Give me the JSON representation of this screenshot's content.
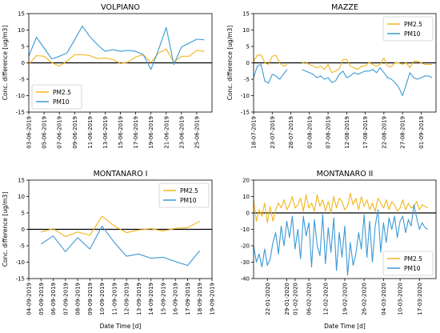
{
  "colors": {
    "PM2.5": "#f2b51c",
    "PM10": "#3c9ad6",
    "zero": "#000000"
  },
  "chart_data": [
    {
      "type": "line",
      "title": "VOLPIANO",
      "xlabel": "",
      "ylabel": "Conc. difference [ug/m3]",
      "ylim": [
        -15,
        15
      ],
      "yticks": [
        -15,
        -10,
        -5,
        0,
        5,
        10,
        15
      ],
      "xlim": [
        "2019-06-03",
        "2019-06-27"
      ],
      "xticks": [
        "03-06-2019",
        "05-06-2019",
        "07-06-2019",
        "09-06-2019",
        "11-06-2019",
        "13-06-2019",
        "15-06-2019",
        "17-06-2019",
        "19-06-2019",
        "21-06-2019",
        "23-06-2019",
        "25-06-2019"
      ],
      "legend": [
        "PM2.5",
        "PM10"
      ],
      "legend_position": "bottom-left",
      "series": [
        {
          "name": "PM2.5",
          "x": [
            "2019-06-03",
            "2019-06-04",
            "2019-06-05",
            "2019-06-06",
            "2019-06-07",
            "2019-06-08",
            "2019-06-09",
            "2019-06-10",
            "2019-06-11",
            "2019-06-12",
            "2019-06-13",
            "2019-06-14",
            "2019-06-15",
            "2019-06-16",
            "2019-06-17",
            "2019-06-18",
            "2019-06-19",
            "2019-06-20",
            "2019-06-21",
            "2019-06-22",
            "2019-06-23",
            "2019-06-24",
            "2019-06-25",
            "2019-06-26"
          ],
          "values": [
            -0.5,
            2.2,
            2.0,
            0.1,
            -1.0,
            0.5,
            2.5,
            2.5,
            2.2,
            1.3,
            1.5,
            1.0,
            -0.2,
            0.2,
            1.8,
            2.5,
            0.1,
            3.0,
            4.2,
            0.2,
            2.0,
            2.0,
            3.8,
            3.5
          ]
        },
        {
          "name": "PM10",
          "x": [
            "2019-06-03",
            "2019-06-04",
            "2019-06-05",
            "2019-06-06",
            "2019-06-07",
            "2019-06-08",
            "2019-06-09",
            "2019-06-10",
            "2019-06-11",
            "2019-06-12",
            "2019-06-13",
            "2019-06-14",
            "2019-06-15",
            "2019-06-16",
            "2019-06-17",
            "2019-06-18",
            "2019-06-19",
            "2019-06-20",
            "2019-06-21",
            "2019-06-22",
            "2019-06-23",
            "2019-06-24",
            "2019-06-25",
            "2019-06-26"
          ],
          "values": [
            2.0,
            7.8,
            4.5,
            1.2,
            2.0,
            3.0,
            7.0,
            11.2,
            8.0,
            5.5,
            3.5,
            4.0,
            3.5,
            3.8,
            3.5,
            2.5,
            -2.0,
            4.0,
            10.8,
            -0.5,
            4.8,
            6.0,
            7.2,
            7.0
          ]
        }
      ]
    },
    {
      "type": "line",
      "title": "MAZZE",
      "xlabel": "",
      "ylabel": "Conc. difference [ug/m3]",
      "ylim": [
        -15,
        15
      ],
      "yticks": [
        -15,
        -10,
        -5,
        0,
        5,
        10,
        15
      ],
      "xlim": [
        "2019-07-18",
        "2019-09-05"
      ],
      "xticks": [
        "18-07-2019",
        "23-07-2019",
        "28-07-2019",
        "02-08-2019",
        "07-08-2019",
        "12-08-2019",
        "17-08-2019",
        "22-08-2019",
        "27-08-2019",
        "01-09-2019"
      ],
      "legend": [
        "PM2.5",
        "PM10"
      ],
      "legend_position": "top-right",
      "series": [
        {
          "name": "PM2.5",
          "segments": [
            {
              "x": [
                "2019-07-18",
                "2019-07-19",
                "2019-07-20",
                "2019-07-21",
                "2019-07-22",
                "2019-07-23",
                "2019-07-24",
                "2019-07-25",
                "2019-07-26",
                "2019-07-27"
              ],
              "values": [
                0.5,
                2.3,
                2.5,
                0.0,
                -0.5,
                2.0,
                2.3,
                0.0,
                -1.0,
                -0.5
              ]
            },
            {
              "x": [
                "2019-07-31",
                "2019-08-01",
                "2019-08-02",
                "2019-08-03",
                "2019-08-04",
                "2019-08-05",
                "2019-08-06",
                "2019-08-07",
                "2019-08-08",
                "2019-08-09",
                "2019-08-10",
                "2019-08-11",
                "2019-08-12",
                "2019-08-13",
                "2019-08-14",
                "2019-08-15",
                "2019-08-16",
                "2019-08-17",
                "2019-08-18",
                "2019-08-19",
                "2019-08-20",
                "2019-08-21",
                "2019-08-22",
                "2019-08-23",
                "2019-08-24",
                "2019-08-25",
                "2019-08-26",
                "2019-08-27",
                "2019-08-28",
                "2019-08-29",
                "2019-08-30",
                "2019-08-31",
                "2019-09-01",
                "2019-09-02",
                "2019-09-03",
                "2019-09-04"
              ],
              "values": [
                0.0,
                0.2,
                -0.5,
                -1.0,
                -1.5,
                -1.0,
                -2.0,
                -0.5,
                -3.0,
                -2.5,
                -1.8,
                1.0,
                1.0,
                -1.0,
                -1.5,
                -2.0,
                -1.0,
                -1.0,
                0.2,
                -0.5,
                -1.0,
                -0.5,
                1.5,
                -1.0,
                -1.2,
                0.0,
                0.0,
                -0.5,
                0.0,
                -1.5,
                0.5,
                0.5,
                0.0,
                -0.5,
                -0.5,
                -0.5
              ]
            }
          ]
        },
        {
          "name": "PM10",
          "segments": [
            {
              "x": [
                "2019-07-18",
                "2019-07-19",
                "2019-07-20",
                "2019-07-21",
                "2019-07-22",
                "2019-07-23",
                "2019-07-24",
                "2019-07-25",
                "2019-07-26",
                "2019-07-27"
              ],
              "values": [
                -4.5,
                -1.0,
                -0.5,
                -5.5,
                -6.2,
                -3.5,
                -4.0,
                -5.0,
                -3.5,
                -2.0
              ]
            },
            {
              "x": [
                "2019-07-31",
                "2019-08-01",
                "2019-08-02",
                "2019-08-03",
                "2019-08-04",
                "2019-08-05",
                "2019-08-06",
                "2019-08-07",
                "2019-08-08",
                "2019-08-09",
                "2019-08-10",
                "2019-08-11",
                "2019-08-12",
                "2019-08-13",
                "2019-08-14",
                "2019-08-15",
                "2019-08-16",
                "2019-08-17",
                "2019-08-18",
                "2019-08-19",
                "2019-08-20",
                "2019-08-21",
                "2019-08-22",
                "2019-08-23",
                "2019-08-24",
                "2019-08-25",
                "2019-08-26",
                "2019-08-27",
                "2019-08-28",
                "2019-08-29",
                "2019-08-30",
                "2019-08-31",
                "2019-09-01",
                "2019-09-02",
                "2019-09-03",
                "2019-09-04"
              ],
              "values": [
                -2.0,
                -2.5,
                -3.0,
                -3.5,
                -4.5,
                -4.0,
                -5.0,
                -4.5,
                -6.0,
                -5.5,
                -3.5,
                -2.5,
                -4.5,
                -4.0,
                -3.0,
                -3.5,
                -3.0,
                -2.5,
                -2.5,
                -2.0,
                -3.0,
                -1.5,
                -3.0,
                -4.5,
                -5.0,
                -6.0,
                -7.5,
                -10.0,
                -6.5,
                -3.0,
                -4.5,
                -5.0,
                -4.5,
                -4.0,
                -4.0,
                -4.5
              ]
            }
          ]
        }
      ]
    },
    {
      "type": "line",
      "title": "MONTANARO I",
      "xlabel": "Date Time [d]",
      "ylabel": "Conc. difference [ug/m3]",
      "ylim": [
        -15,
        15
      ],
      "yticks": [
        -15,
        -10,
        -5,
        0,
        5,
        10,
        15
      ],
      "xlim": [
        "2019-09-04",
        "2019-09-19"
      ],
      "xticks": [
        "04-09-2019",
        "05-09-2019",
        "06-09-2019",
        "07-09-2019",
        "08-09-2019",
        "09-09-2019",
        "10-09-2019",
        "11-09-2019",
        "12-09-2019",
        "13-09-2019",
        "14-09-2019",
        "15-09-2019",
        "16-09-2019",
        "17-09-2019",
        "18-09-2019",
        "19-09-2019"
      ],
      "legend": [
        "PM2.5",
        "PM10"
      ],
      "legend_position": "top-right",
      "series": [
        {
          "name": "PM2.5",
          "x": [
            "2019-09-05",
            "2019-09-06",
            "2019-09-07",
            "2019-09-08",
            "2019-09-09",
            "2019-09-10",
            "2019-09-11",
            "2019-09-12",
            "2019-09-13",
            "2019-09-14",
            "2019-09-15",
            "2019-09-16",
            "2019-09-17",
            "2019-09-18"
          ],
          "values": [
            -0.8,
            0.2,
            -2.2,
            -0.8,
            -1.8,
            4.0,
            1.0,
            -1.0,
            -0.2,
            0.2,
            -0.5,
            0.3,
            0.5,
            2.5
          ]
        },
        {
          "name": "PM10",
          "x": [
            "2019-09-05",
            "2019-09-06",
            "2019-09-07",
            "2019-09-08",
            "2019-09-09",
            "2019-09-10",
            "2019-09-11",
            "2019-09-12",
            "2019-09-13",
            "2019-09-14",
            "2019-09-15",
            "2019-09-16",
            "2019-09-17",
            "2019-09-18"
          ],
          "values": [
            -4.5,
            -2.0,
            -6.8,
            -2.5,
            -6.0,
            1.0,
            -4.0,
            -8.2,
            -7.5,
            -8.8,
            -8.5,
            -9.8,
            -11.0,
            -6.5
          ]
        }
      ]
    },
    {
      "type": "line",
      "title": "MONTANARO II",
      "xlabel": "Date Time [d]",
      "ylabel": "",
      "ylim": [
        -40,
        20
      ],
      "yticks": [
        -40,
        -30,
        -20,
        -10,
        0,
        10,
        20
      ],
      "xlim": [
        "2020-01-17",
        "2020-03-23"
      ],
      "xticks": [
        "22-01-2020",
        "29-01-2020",
        "01-02-2020",
        "06-02-2020",
        "12-02-2020",
        "19-02-2020",
        "26-02-2020",
        "04-03-2020",
        "10-03-2020",
        "17-03-2020"
      ],
      "legend": [
        "PM2.5",
        "PM10"
      ],
      "legend_position": "bottom-right",
      "series": [
        {
          "name": "PM2.5",
          "x": [
            "2020-01-17",
            "2020-01-18",
            "2020-01-19",
            "2020-01-20",
            "2020-01-21",
            "2020-01-22",
            "2020-01-23",
            "2020-01-24",
            "2020-01-25",
            "2020-01-26",
            "2020-01-27",
            "2020-01-28",
            "2020-01-29",
            "2020-01-30",
            "2020-01-31",
            "2020-02-01",
            "2020-02-02",
            "2020-02-03",
            "2020-02-04",
            "2020-02-05",
            "2020-02-06",
            "2020-02-07",
            "2020-02-08",
            "2020-02-09",
            "2020-02-10",
            "2020-02-11",
            "2020-02-12",
            "2020-02-13",
            "2020-02-14",
            "2020-02-15",
            "2020-02-16",
            "2020-02-17",
            "2020-02-18",
            "2020-02-19",
            "2020-02-20",
            "2020-02-21",
            "2020-02-22",
            "2020-02-23",
            "2020-02-24",
            "2020-02-25",
            "2020-02-26",
            "2020-02-27",
            "2020-02-28",
            "2020-02-29",
            "2020-03-01",
            "2020-03-02",
            "2020-03-03",
            "2020-03-04",
            "2020-03-05",
            "2020-03-06",
            "2020-03-07",
            "2020-03-08",
            "2020-03-09",
            "2020-03-10",
            "2020-03-11",
            "2020-03-12",
            "2020-03-13",
            "2020-03-14",
            "2020-03-15",
            "2020-03-16",
            "2020-03-17",
            "2020-03-18",
            "2020-03-19",
            "2020-03-20"
          ],
          "values": [
            8,
            -5,
            2,
            -2,
            6,
            -6,
            4,
            -5,
            2,
            6,
            3,
            8,
            2,
            5,
            10,
            3,
            5,
            9,
            1,
            11,
            3,
            6,
            1,
            11,
            4,
            8,
            1,
            7,
            0,
            10,
            3,
            9,
            7,
            2,
            4,
            12,
            5,
            9,
            2,
            10,
            4,
            8,
            2,
            6,
            1,
            9,
            6,
            3,
            8,
            2,
            7,
            5,
            1,
            3,
            8,
            2,
            6,
            3,
            4,
            7,
            2,
            5,
            4,
            3
          ]
        },
        {
          "name": "PM10",
          "x": [
            "2020-01-17",
            "2020-01-18",
            "2020-01-19",
            "2020-01-20",
            "2020-01-21",
            "2020-01-22",
            "2020-01-23",
            "2020-01-24",
            "2020-01-25",
            "2020-01-26",
            "2020-01-27",
            "2020-01-28",
            "2020-01-29",
            "2020-01-30",
            "2020-01-31",
            "2020-02-01",
            "2020-02-02",
            "2020-02-03",
            "2020-02-04",
            "2020-02-05",
            "2020-02-06",
            "2020-02-07",
            "2020-02-08",
            "2020-02-09",
            "2020-02-10",
            "2020-02-11",
            "2020-02-12",
            "2020-02-13",
            "2020-02-14",
            "2020-02-15",
            "2020-02-16",
            "2020-02-17",
            "2020-02-18",
            "2020-02-19",
            "2020-02-20",
            "2020-02-21",
            "2020-02-22",
            "2020-02-23",
            "2020-02-24",
            "2020-02-25",
            "2020-02-26",
            "2020-02-27",
            "2020-02-28",
            "2020-02-29",
            "2020-03-01",
            "2020-03-02",
            "2020-03-03",
            "2020-03-04",
            "2020-03-05",
            "2020-03-06",
            "2020-03-07",
            "2020-03-08",
            "2020-03-09",
            "2020-03-10",
            "2020-03-11",
            "2020-03-12",
            "2020-03-13",
            "2020-03-14",
            "2020-03-15",
            "2020-03-16",
            "2020-03-17",
            "2020-03-18",
            "2020-03-19",
            "2020-03-20"
          ],
          "values": [
            -20,
            -30,
            -25,
            -33,
            -22,
            -32,
            -28,
            -18,
            -12,
            -25,
            -8,
            -20,
            -5,
            -15,
            -2,
            -22,
            -10,
            -28,
            -2,
            -14,
            -6,
            -33,
            -4,
            -20,
            -26,
            -1,
            -31,
            -9,
            -24,
            -3,
            -35,
            -12,
            -27,
            -8,
            -38,
            -18,
            -32,
            -25,
            -12,
            -22,
            -1,
            -27,
            -5,
            -30,
            -8,
            2,
            -24,
            -6,
            -18,
            -3,
            -10,
            -2,
            -15,
            -5,
            -2,
            -12,
            -4,
            -8,
            5,
            -3,
            -10,
            -6,
            -9,
            -10
          ]
        }
      ]
    }
  ]
}
